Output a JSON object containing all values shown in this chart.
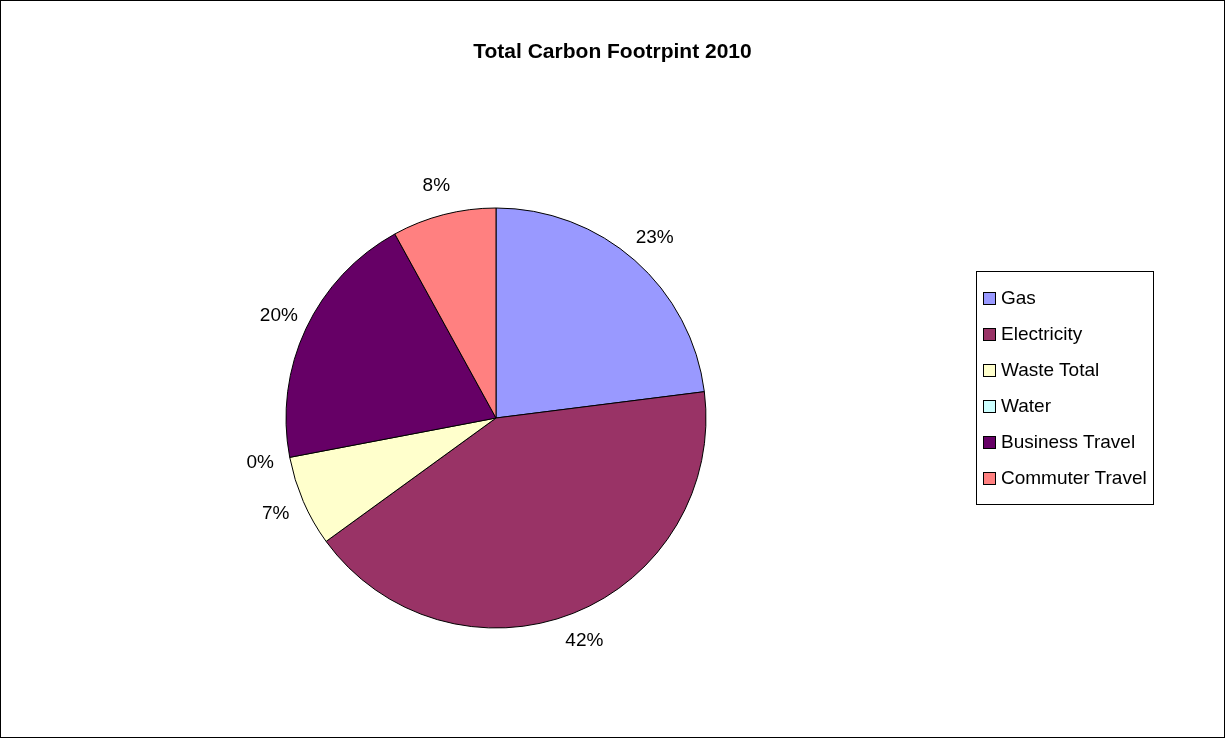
{
  "chart_data": {
    "type": "pie",
    "title": "Total Carbon Footrpint 2010",
    "categories": [
      "Gas",
      "Electricity",
      "Waste Total",
      "Water",
      "Business Travel",
      "Commuter Travel"
    ],
    "values": [
      23,
      42,
      7,
      0,
      20,
      8
    ],
    "colors": [
      "#9999ff",
      "#993366",
      "#ffffcc",
      "#ccffff",
      "#660066",
      "#ff8080"
    ],
    "value_labels": [
      "23%",
      "42%",
      "7%",
      "0%",
      "20%",
      "8%"
    ],
    "legend": "right"
  }
}
